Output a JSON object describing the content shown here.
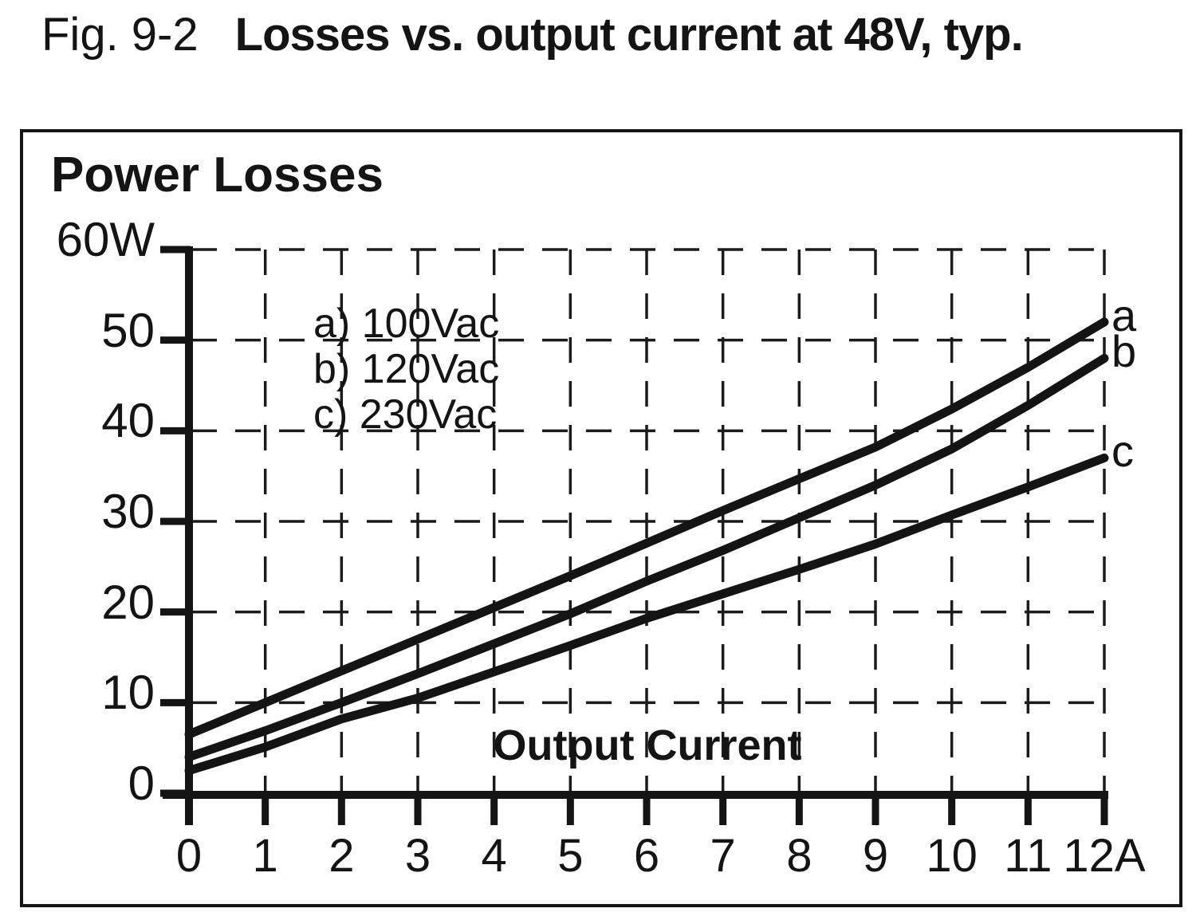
{
  "figure": {
    "fig_label": "Fig. 9-2",
    "title": "Losses vs. output current at 48V, typ."
  },
  "chart_data": {
    "type": "line",
    "title": "Power Losses",
    "xlabel": "Output Current",
    "ylabel": "Power Losses",
    "x_unit": "A",
    "y_unit": "W",
    "xlim": [
      0,
      12
    ],
    "ylim": [
      0,
      60
    ],
    "grid": "dashed",
    "legend_position": "upper-left-inside",
    "x": [
      0,
      1,
      2,
      3,
      4,
      5,
      6,
      7,
      8,
      9,
      10,
      11,
      12
    ],
    "x_ticks": [
      0,
      1,
      2,
      3,
      4,
      5,
      6,
      7,
      8,
      9,
      10,
      11,
      12
    ],
    "x_tick_labels": [
      "0",
      "1",
      "2",
      "3",
      "4",
      "5",
      "6",
      "7",
      "8",
      "9",
      "10",
      "11",
      "12A"
    ],
    "y_ticks": [
      0,
      10,
      20,
      30,
      40,
      50,
      60
    ],
    "y_tick_labels": [
      "0",
      "10",
      "20",
      "30",
      "40",
      "50",
      "60W"
    ],
    "series": [
      {
        "key": "a",
        "legend": "a) 100Vac",
        "end_label": "a",
        "values": [
          6.5,
          10,
          13.5,
          17,
          20.5,
          24,
          27.6,
          31.2,
          34.7,
          38.2,
          42.4,
          47,
          52
        ]
      },
      {
        "key": "b",
        "legend": "b) 120Vac",
        "end_label": "b",
        "values": [
          4,
          6.9,
          10,
          13.2,
          16.5,
          19.8,
          23.4,
          26.8,
          30.4,
          34,
          38,
          42.8,
          48
        ]
      },
      {
        "key": "c",
        "legend": "c) 230Vac",
        "end_label": "c",
        "values": [
          2.5,
          5.1,
          8.2,
          10.5,
          13.4,
          16.3,
          19.3,
          22,
          24.7,
          27.5,
          30.7,
          33.8,
          37
        ]
      }
    ]
  },
  "colors": {
    "ink": "#141414",
    "grid": "#1b1b1b",
    "background": "#ffffff"
  }
}
